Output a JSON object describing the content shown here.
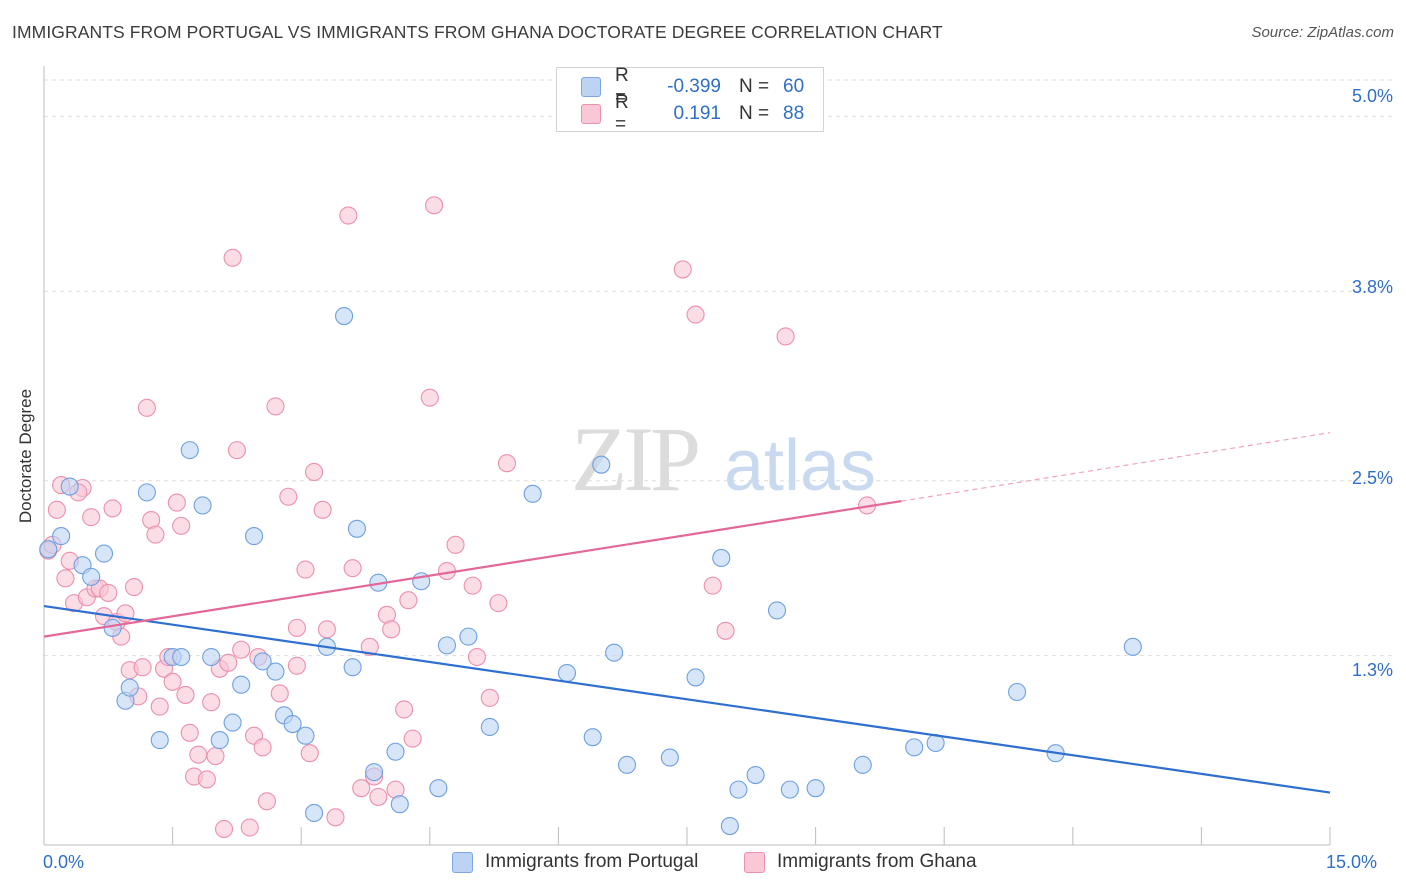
{
  "title": "IMMIGRANTS FROM PORTUGAL VS IMMIGRANTS FROM GHANA DOCTORATE DEGREE CORRELATION CHART",
  "source": "Source: ZipAtlas.com",
  "watermark": {
    "zip": "ZIP",
    "atlas": "atlas"
  },
  "legend_top": {
    "r_label": "R =",
    "n_label": "N =",
    "rows": [
      {
        "r": "-0.399",
        "n": "60",
        "color": "#6ea0e0"
      },
      {
        "r": "0.191",
        "n": "88",
        "color": "#ec8fae"
      }
    ]
  },
  "legend_bottom": [
    {
      "label": "Immigrants from Portugal"
    },
    {
      "label": "Immigrants from Ghana"
    }
  ],
  "chart_data": {
    "type": "scatter",
    "title": "IMMIGRANTS FROM PORTUGAL VS IMMIGRANTS FROM GHANA DOCTORATE DEGREE CORRELATION CHART",
    "xlabel": "",
    "ylabel": "Doctorate Degree",
    "xlim": [
      0,
      15
    ],
    "ylim": [
      0,
      5.25
    ],
    "x_tick_labels": [
      "0.0%",
      "15.0%"
    ],
    "y_ticks": [
      1.3,
      2.5,
      3.8,
      5.0
    ],
    "y_tick_labels": [
      "1.3%",
      "2.5%",
      "3.8%",
      "5.0%"
    ],
    "grid": true,
    "series": [
      {
        "name": "Immigrants from Portugal",
        "color": "#6ea0e0",
        "fill": "#bcd3f3",
        "trend": {
          "x0": 0,
          "y0": 1.64,
          "x1": 15,
          "y1": 0.36
        },
        "points": [
          [
            0.05,
            2.03
          ],
          [
            0.2,
            2.12
          ],
          [
            0.3,
            2.46
          ],
          [
            0.45,
            1.92
          ],
          [
            0.55,
            1.84
          ],
          [
            0.7,
            2.0
          ],
          [
            0.8,
            1.49
          ],
          [
            0.95,
            0.99
          ],
          [
            1.0,
            1.08
          ],
          [
            1.2,
            2.42
          ],
          [
            1.35,
            0.72
          ],
          [
            1.5,
            1.29
          ],
          [
            1.6,
            1.29
          ],
          [
            1.7,
            2.71
          ],
          [
            1.85,
            2.33
          ],
          [
            1.95,
            1.29
          ],
          [
            2.05,
            0.72
          ],
          [
            2.2,
            0.84
          ],
          [
            2.3,
            1.1
          ],
          [
            2.45,
            2.12
          ],
          [
            2.55,
            1.26
          ],
          [
            2.7,
            1.19
          ],
          [
            2.8,
            0.89
          ],
          [
            2.9,
            0.83
          ],
          [
            3.05,
            0.75
          ],
          [
            3.15,
            0.22
          ],
          [
            3.3,
            1.36
          ],
          [
            3.5,
            3.63
          ],
          [
            3.6,
            1.22
          ],
          [
            3.65,
            2.17
          ],
          [
            3.85,
            0.5
          ],
          [
            3.9,
            1.8
          ],
          [
            4.1,
            0.64
          ],
          [
            4.15,
            0.28
          ],
          [
            4.4,
            1.81
          ],
          [
            4.6,
            0.39
          ],
          [
            4.7,
            1.37
          ],
          [
            4.95,
            1.43
          ],
          [
            5.2,
            0.81
          ],
          [
            5.7,
            2.41
          ],
          [
            6.1,
            1.18
          ],
          [
            6.4,
            0.74
          ],
          [
            6.5,
            2.61
          ],
          [
            6.65,
            1.32
          ],
          [
            6.8,
            0.55
          ],
          [
            7.3,
            0.6
          ],
          [
            7.6,
            1.15
          ],
          [
            7.9,
            1.97
          ],
          [
            8.1,
            0.38
          ],
          [
            8.3,
            0.48
          ],
          [
            8.55,
            1.61
          ],
          [
            8.7,
            0.38
          ],
          [
            9.0,
            0.39
          ],
          [
            9.55,
            0.55
          ],
          [
            10.15,
            0.67
          ],
          [
            10.4,
            0.7
          ],
          [
            11.35,
            1.05
          ],
          [
            11.8,
            0.63
          ],
          [
            12.7,
            1.36
          ],
          [
            8.0,
            0.13
          ]
        ]
      },
      {
        "name": "Immigrants from Ghana",
        "color": "#ec8fae",
        "fill": "#f9c7d6",
        "trend": {
          "x0": 0,
          "y0": 1.43,
          "x1": 10.0,
          "y1": 2.36,
          "x_dash_end": 15,
          "y_dash_end": 2.83
        },
        "points": [
          [
            0.05,
            2.02
          ],
          [
            0.1,
            2.06
          ],
          [
            0.15,
            2.3
          ],
          [
            0.2,
            2.47
          ],
          [
            0.25,
            1.83
          ],
          [
            0.3,
            1.95
          ],
          [
            0.35,
            1.66
          ],
          [
            0.45,
            2.45
          ],
          [
            0.5,
            1.7
          ],
          [
            0.55,
            2.25
          ],
          [
            0.6,
            1.76
          ],
          [
            0.65,
            1.76
          ],
          [
            0.7,
            1.57
          ],
          [
            0.75,
            1.73
          ],
          [
            0.8,
            2.31
          ],
          [
            0.85,
            1.53
          ],
          [
            0.9,
            1.43
          ],
          [
            0.95,
            1.59
          ],
          [
            1.0,
            1.2
          ],
          [
            1.1,
            1.02
          ],
          [
            1.15,
            1.22
          ],
          [
            1.2,
            3.0
          ],
          [
            1.25,
            2.23
          ],
          [
            1.3,
            2.13
          ],
          [
            1.35,
            0.95
          ],
          [
            1.4,
            1.21
          ],
          [
            1.45,
            1.29
          ],
          [
            1.5,
            1.12
          ],
          [
            1.55,
            2.35
          ],
          [
            1.6,
            2.19
          ],
          [
            1.7,
            0.77
          ],
          [
            1.75,
            0.47
          ],
          [
            1.8,
            0.62
          ],
          [
            1.9,
            0.45
          ],
          [
            1.95,
            0.98
          ],
          [
            2.0,
            0.61
          ],
          [
            2.05,
            1.21
          ],
          [
            2.1,
            0.11
          ],
          [
            2.15,
            1.25
          ],
          [
            2.2,
            4.03
          ],
          [
            2.25,
            2.71
          ],
          [
            2.3,
            1.34
          ],
          [
            2.4,
            0.12
          ],
          [
            2.45,
            0.75
          ],
          [
            2.55,
            0.67
          ],
          [
            2.6,
            0.3
          ],
          [
            2.7,
            3.01
          ],
          [
            2.75,
            1.04
          ],
          [
            2.85,
            2.39
          ],
          [
            2.95,
            1.49
          ],
          [
            3.05,
            1.89
          ],
          [
            3.1,
            0.63
          ],
          [
            3.15,
            2.56
          ],
          [
            3.25,
            2.3
          ],
          [
            3.3,
            1.48
          ],
          [
            3.4,
            0.19
          ],
          [
            3.55,
            4.32
          ],
          [
            3.6,
            1.9
          ],
          [
            3.7,
            0.39
          ],
          [
            3.85,
            0.47
          ],
          [
            3.9,
            0.33
          ],
          [
            4.0,
            1.58
          ],
          [
            4.05,
            1.48
          ],
          [
            4.1,
            0.38
          ],
          [
            4.2,
            0.93
          ],
          [
            4.25,
            1.68
          ],
          [
            4.3,
            0.73
          ],
          [
            4.5,
            3.07
          ],
          [
            4.55,
            4.39
          ],
          [
            4.7,
            1.88
          ],
          [
            4.8,
            2.06
          ],
          [
            5.0,
            1.78
          ],
          [
            5.05,
            1.29
          ],
          [
            5.2,
            1.01
          ],
          [
            5.3,
            1.66
          ],
          [
            5.4,
            2.62
          ],
          [
            7.45,
            3.95
          ],
          [
            7.6,
            3.64
          ],
          [
            7.8,
            1.78
          ],
          [
            7.95,
            1.47
          ],
          [
            8.65,
            3.49
          ],
          [
            9.6,
            2.33
          ],
          [
            3.8,
            1.36
          ],
          [
            2.5,
            1.29
          ],
          [
            1.65,
            1.03
          ],
          [
            2.95,
            1.23
          ],
          [
            0.4,
            2.42
          ],
          [
            1.05,
            1.77
          ]
        ]
      }
    ]
  }
}
